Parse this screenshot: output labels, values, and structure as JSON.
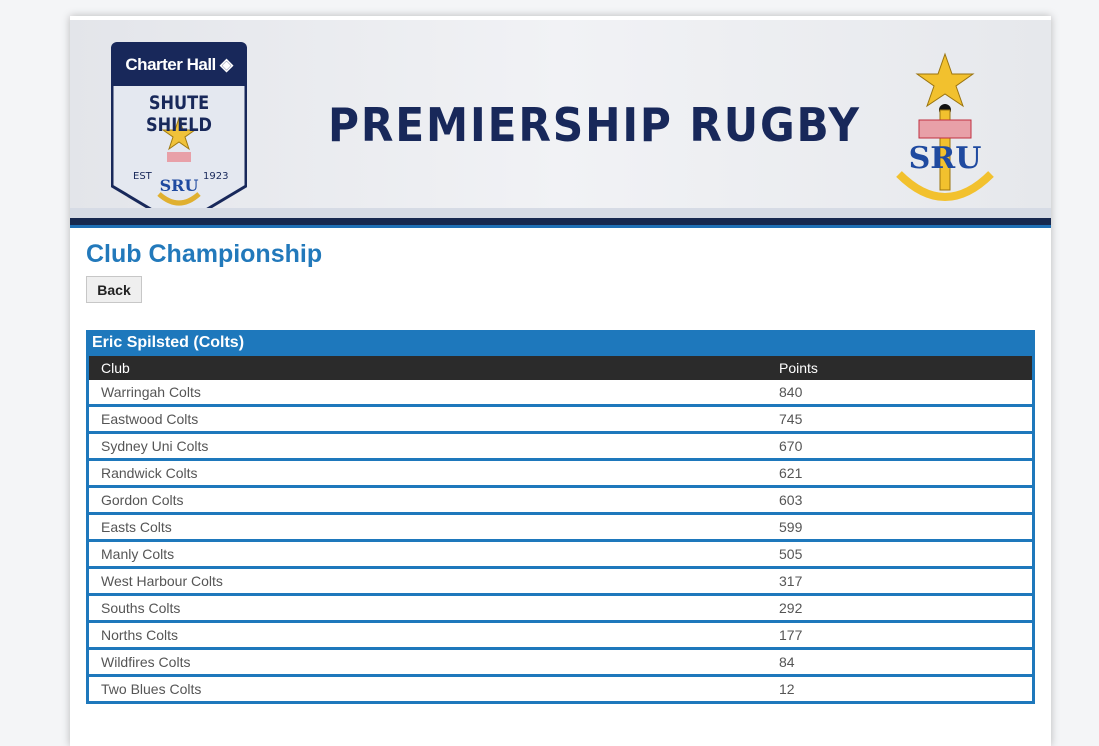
{
  "banner": {
    "sponsor": "Charter Hall",
    "shield_title": "SHUTE SHIELD",
    "est": "EST",
    "year": "1923",
    "headline": "PREMIERSHIP RUGBY",
    "sru_logo": "SRU"
  },
  "page_title": "Club Championship",
  "back_label": "Back",
  "table": {
    "caption": "Eric Spilsted (Colts)",
    "headers": [
      "Club",
      "Points"
    ],
    "rows": [
      [
        "Warringah Colts",
        "840"
      ],
      [
        "Eastwood Colts",
        "745"
      ],
      [
        "Sydney Uni Colts",
        "670"
      ],
      [
        "Randwick Colts",
        "621"
      ],
      [
        "Gordon Colts",
        "603"
      ],
      [
        "Easts Colts",
        "599"
      ],
      [
        "Manly Colts",
        "505"
      ],
      [
        "West Harbour Colts",
        "317"
      ],
      [
        "Souths Colts",
        "292"
      ],
      [
        "Norths Colts",
        "177"
      ],
      [
        "Wildfires Colts",
        "84"
      ],
      [
        "Two Blues Colts",
        "12"
      ]
    ]
  },
  "colors": {
    "accent": "#1e78bc",
    "navy": "#18285a",
    "header_row": "#2b2b2b"
  }
}
